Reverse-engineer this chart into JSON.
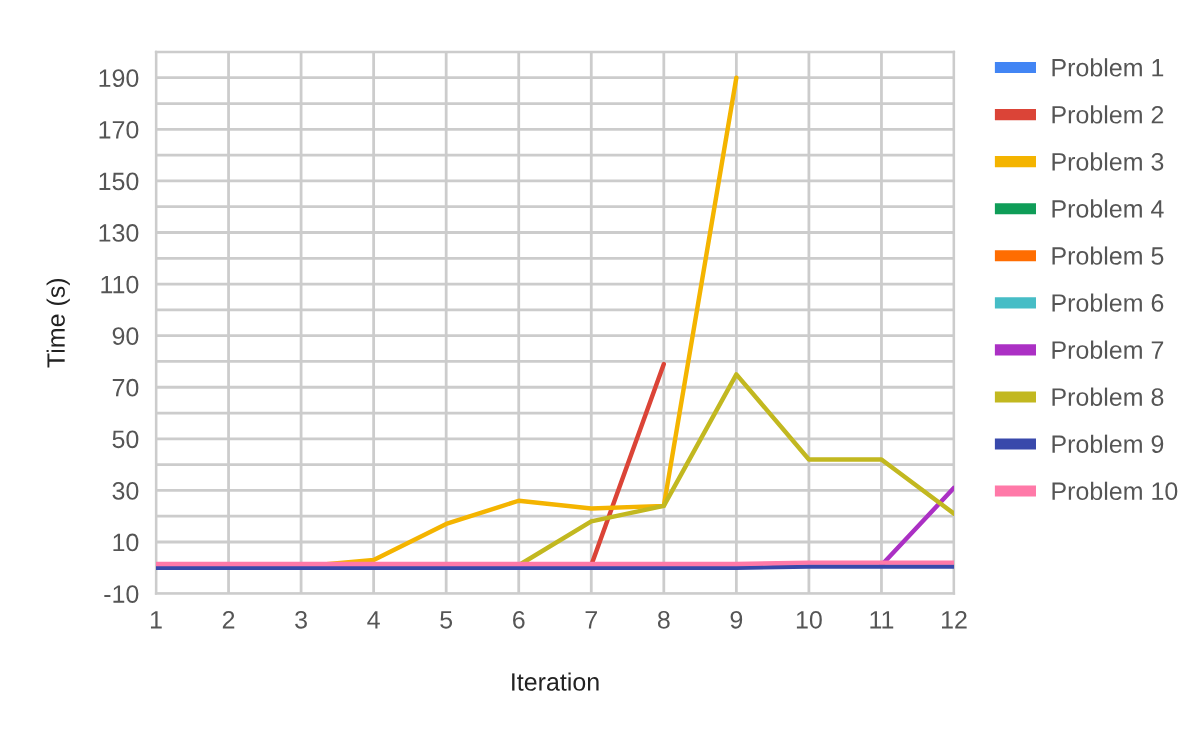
{
  "chart_data": {
    "type": "line",
    "xlabel": "Iteration",
    "ylabel": "Time (s)",
    "x": [
      1,
      2,
      3,
      4,
      5,
      6,
      7,
      8,
      9,
      10,
      11,
      12
    ],
    "xlim": [
      1,
      12
    ],
    "xticks": [
      1,
      2,
      3,
      4,
      5,
      6,
      7,
      8,
      9,
      10,
      11,
      12
    ],
    "ylim": [
      -10,
      200
    ],
    "yticks": [
      -10,
      10,
      {
        "value": 20,
        "label": null
      },
      30,
      {
        "value": 40,
        "label": null
      },
      50,
      {
        "value": 60,
        "label": null
      },
      70,
      {
        "value": 80,
        "label": null
      },
      90,
      {
        "value": 100,
        "label": null
      },
      110,
      {
        "value": 120,
        "label": null
      },
      130,
      {
        "value": 140,
        "label": null
      },
      150,
      {
        "value": 160,
        "label": null
      },
      170,
      {
        "value": 180,
        "label": null
      },
      190,
      {
        "value": 200,
        "label": null
      }
    ],
    "grid": true,
    "legend": "right",
    "marker": "none",
    "line_style": "solid",
    "series": [
      {
        "name": "Problem 1",
        "color": "#4285f4",
        "values": [
          null,
          null,
          null,
          null,
          null,
          null,
          null,
          null,
          null,
          null,
          null,
          null
        ]
      },
      {
        "name": "Problem 2",
        "color": "#db4437",
        "values": [
          null,
          null,
          null,
          null,
          null,
          null,
          1,
          79,
          null,
          null,
          null,
          null
        ]
      },
      {
        "name": "Problem 3",
        "color": "#f4b400",
        "values": [
          0,
          0,
          0.5,
          3,
          17,
          26,
          23,
          24,
          190,
          null,
          null,
          null
        ]
      },
      {
        "name": "Problem 4",
        "color": "#0f9d58",
        "values": [
          null,
          null,
          null,
          null,
          null,
          null,
          null,
          null,
          null,
          null,
          null,
          null
        ]
      },
      {
        "name": "Problem 5",
        "color": "#ff6d01",
        "values": [
          null,
          null,
          null,
          null,
          null,
          null,
          null,
          null,
          null,
          null,
          null,
          null
        ]
      },
      {
        "name": "Problem 6",
        "color": "#46bdc6",
        "values": [
          null,
          null,
          null,
          null,
          null,
          null,
          null,
          null,
          null,
          null,
          null,
          null
        ]
      },
      {
        "name": "Problem 7",
        "color": "#ab30c4",
        "values": [
          null,
          null,
          null,
          null,
          null,
          null,
          null,
          null,
          null,
          null,
          1,
          31
        ]
      },
      {
        "name": "Problem 8",
        "color": "#c2b820",
        "values": [
          null,
          null,
          null,
          null,
          null,
          1,
          18,
          24,
          75,
          42,
          42,
          21
        ]
      },
      {
        "name": "Problem 9",
        "color": "#3949ab",
        "values": [
          0,
          0,
          0,
          0,
          0,
          0,
          0,
          0,
          0,
          0.5,
          0.5,
          0.5
        ]
      },
      {
        "name": "Problem 10",
        "color": "#ff79a8",
        "values": [
          1.5,
          1.5,
          1.5,
          1.5,
          1.5,
          1.5,
          1.5,
          1.5,
          1.5,
          2,
          2,
          2
        ]
      }
    ]
  }
}
